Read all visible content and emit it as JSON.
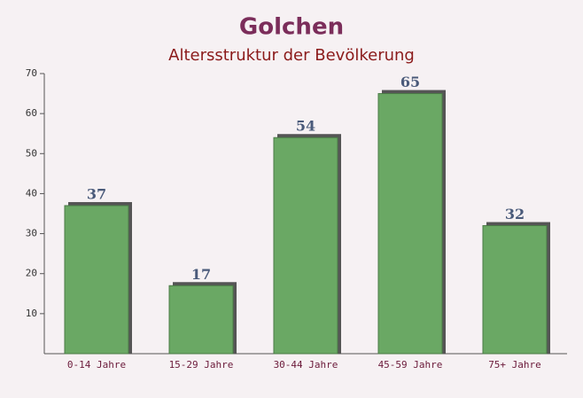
{
  "chart_data": {
    "type": "bar",
    "title": "Golchen",
    "subtitle": "Altersstruktur der Bevölkerung",
    "categories": [
      "0-14 Jahre",
      "15-29 Jahre",
      "30-44 Jahre",
      "45-59 Jahre",
      "75+ Jahre"
    ],
    "values": [
      37,
      17,
      54,
      65,
      32
    ],
    "color": "#6aa864",
    "ylim": [
      0,
      70
    ],
    "yticks": [
      10,
      20,
      30,
      40,
      50,
      60,
      70
    ],
    "grid": false
  }
}
